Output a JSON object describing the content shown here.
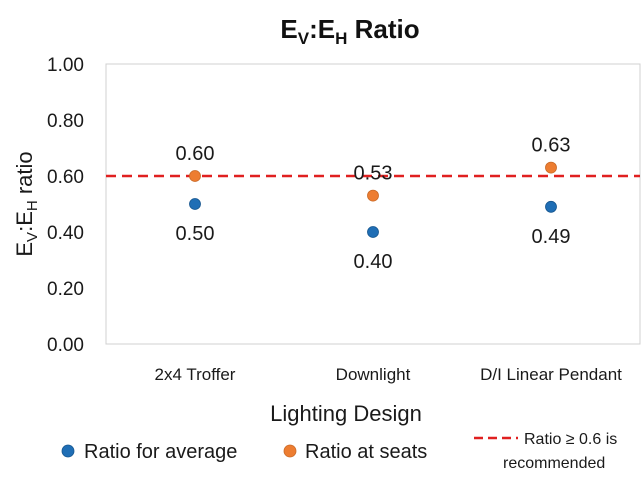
{
  "chart_data": {
    "type": "scatter",
    "title": {
      "main": "E",
      "sub1": "V",
      "mid": ":E",
      "sub2": "H",
      "tail": " Ratio"
    },
    "ylabel": {
      "main": "E",
      "sub1": "V",
      "mid": ":E",
      "sub2": "H",
      "tail": " ratio"
    },
    "xlabel": "Lighting Design",
    "categories": [
      "2x4 Troffer",
      "Downlight",
      "D/I Linear Pendant"
    ],
    "ylim": [
      0,
      1
    ],
    "yticks": [
      "0.00",
      "0.20",
      "0.40",
      "0.60",
      "0.80",
      "1.00"
    ],
    "ytick_values": [
      0,
      0.2,
      0.4,
      0.6,
      0.8,
      1.0
    ],
    "grid": false,
    "series": [
      {
        "name": "Ratio for average",
        "values": [
          0.5,
          0.4,
          0.49
        ],
        "labels": [
          "0.50",
          "0.40",
          "0.49"
        ],
        "color": "#1f6eb5",
        "label_position": "below"
      },
      {
        "name": "Ratio at seats",
        "values": [
          0.6,
          0.53,
          0.63
        ],
        "labels": [
          "0.60",
          "0.53",
          "0.63"
        ],
        "color": "#ed7d31",
        "label_position": "above"
      }
    ],
    "reference_line": {
      "value": 0.6,
      "color": "#e02020",
      "style": "dashed",
      "legend_line1": "Ratio ≥ 0.6 is",
      "legend_line2": "recommended"
    },
    "legend_position": "bottom"
  }
}
